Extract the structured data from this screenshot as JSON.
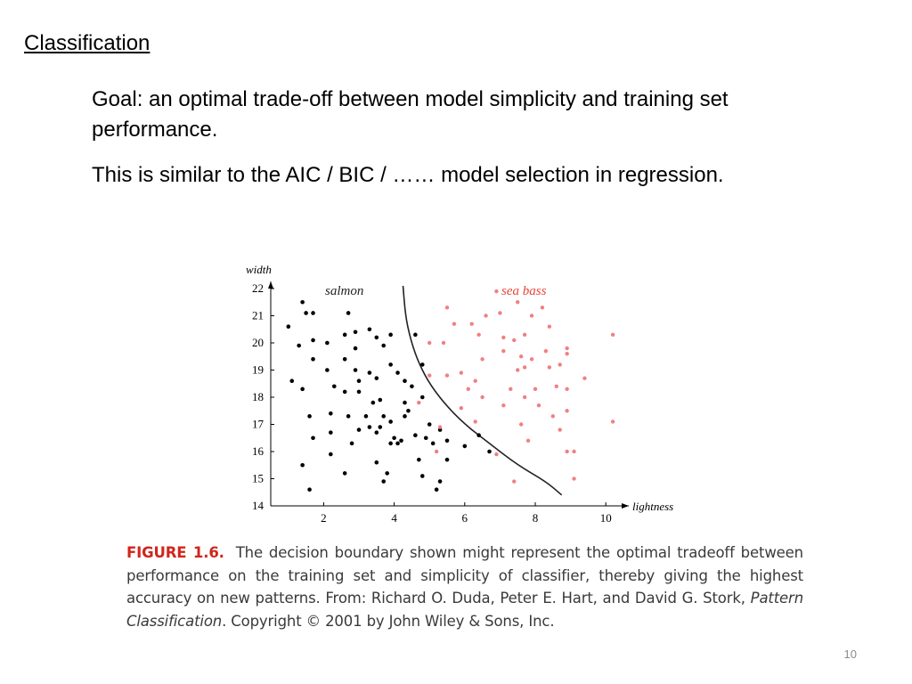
{
  "slide": {
    "title": "Classification",
    "paragraphs": [
      "Goal: an optimal trade-off between model simplicity and training set performance.",
      "This is similar to the AIC / BIC / …… model selection in regression."
    ],
    "page_number": "10"
  },
  "caption": {
    "label": "FIGURE 1.6.",
    "text_1": "The decision boundary shown might represent the optimal tradeoff between performance on the training set and simplicity of classifier, thereby giving the highest accuracy on new patterns. From: Richard O. Duda, Peter E. Hart, and David G. Stork,",
    "book": "Pattern Classification",
    "text_2": ". Copyright © 2001 by John Wiley & Sons, Inc."
  },
  "colors": {
    "salmon": "#000000",
    "sea_bass": "#f08080",
    "sea_bass_label": "#e8443a",
    "boundary": "#222222",
    "caption_label": "#d0261d"
  },
  "chart_data": {
    "type": "scatter",
    "xlabel": "lightness",
    "ylabel": "width",
    "xlim": [
      0.5,
      10.5
    ],
    "ylim": [
      14,
      22
    ],
    "x_ticks": [
      2,
      4,
      6,
      8,
      10
    ],
    "y_ticks": [
      14,
      15,
      16,
      17,
      18,
      19,
      20,
      21,
      22
    ],
    "grid": false,
    "series": [
      {
        "name": "salmon",
        "points": [
          [
            1.4,
            21.5
          ],
          [
            1.5,
            21.1
          ],
          [
            1.7,
            21.1
          ],
          [
            2.7,
            21.1
          ],
          [
            1.0,
            20.6
          ],
          [
            1.3,
            19.9
          ],
          [
            1.7,
            20.1
          ],
          [
            2.1,
            20.0
          ],
          [
            2.6,
            20.3
          ],
          [
            2.9,
            20.4
          ],
          [
            3.3,
            20.5
          ],
          [
            3.5,
            20.2
          ],
          [
            3.9,
            20.3
          ],
          [
            3.7,
            19.9
          ],
          [
            2.9,
            19.8
          ],
          [
            2.6,
            19.4
          ],
          [
            1.7,
            19.4
          ],
          [
            2.1,
            19.0
          ],
          [
            2.9,
            19.0
          ],
          [
            3.3,
            18.9
          ],
          [
            3.5,
            18.7
          ],
          [
            3.0,
            18.6
          ],
          [
            3.9,
            19.2
          ],
          [
            4.1,
            18.9
          ],
          [
            4.3,
            18.6
          ],
          [
            4.5,
            18.4
          ],
          [
            4.6,
            20.3
          ],
          [
            4.8,
            19.2
          ],
          [
            4.8,
            18.0
          ],
          [
            1.1,
            18.6
          ],
          [
            1.4,
            18.3
          ],
          [
            2.3,
            18.4
          ],
          [
            2.6,
            18.2
          ],
          [
            3.0,
            18.2
          ],
          [
            3.6,
            17.9
          ],
          [
            4.3,
            17.8
          ],
          [
            4.4,
            17.5
          ],
          [
            4.3,
            17.3
          ],
          [
            3.4,
            17.8
          ],
          [
            3.2,
            17.3
          ],
          [
            2.2,
            17.4
          ],
          [
            2.7,
            17.3
          ],
          [
            3.7,
            17.3
          ],
          [
            3.9,
            17.1
          ],
          [
            3.3,
            16.9
          ],
          [
            3.6,
            16.9
          ],
          [
            3.0,
            16.8
          ],
          [
            3.5,
            16.7
          ],
          [
            1.6,
            17.3
          ],
          [
            2.2,
            16.7
          ],
          [
            1.7,
            16.5
          ],
          [
            2.8,
            16.3
          ],
          [
            3.9,
            16.3
          ],
          [
            4.0,
            16.5
          ],
          [
            4.2,
            16.4
          ],
          [
            4.6,
            16.6
          ],
          [
            4.9,
            16.5
          ],
          [
            5.1,
            16.3
          ],
          [
            5.0,
            17.0
          ],
          [
            5.3,
            16.8
          ],
          [
            5.5,
            16.4
          ],
          [
            4.1,
            16.3
          ],
          [
            5.5,
            15.7
          ],
          [
            2.2,
            15.9
          ],
          [
            1.4,
            15.5
          ],
          [
            2.6,
            15.2
          ],
          [
            3.5,
            15.6
          ],
          [
            3.8,
            15.2
          ],
          [
            3.7,
            14.9
          ],
          [
            4.7,
            15.7
          ],
          [
            4.8,
            15.1
          ],
          [
            5.3,
            14.9
          ],
          [
            1.6,
            14.6
          ],
          [
            5.2,
            14.6
          ],
          [
            6.0,
            16.2
          ],
          [
            6.4,
            16.6
          ],
          [
            6.7,
            16.0
          ]
        ]
      },
      {
        "name": "sea bass",
        "points": [
          [
            6.9,
            21.9
          ],
          [
            7.5,
            21.5
          ],
          [
            5.5,
            21.3
          ],
          [
            6.6,
            21.0
          ],
          [
            7.0,
            21.1
          ],
          [
            8.2,
            21.3
          ],
          [
            7.9,
            21.0
          ],
          [
            5.7,
            20.7
          ],
          [
            6.2,
            20.7
          ],
          [
            8.4,
            20.6
          ],
          [
            10.2,
            20.3
          ],
          [
            6.4,
            20.3
          ],
          [
            7.1,
            20.2
          ],
          [
            7.7,
            20.3
          ],
          [
            5.0,
            20.0
          ],
          [
            5.4,
            20.0
          ],
          [
            7.4,
            20.1
          ],
          [
            8.9,
            19.8
          ],
          [
            6.5,
            19.4
          ],
          [
            7.1,
            19.7
          ],
          [
            7.6,
            19.5
          ],
          [
            8.3,
            19.7
          ],
          [
            8.9,
            19.6
          ],
          [
            7.9,
            19.4
          ],
          [
            8.4,
            19.1
          ],
          [
            8.7,
            19.2
          ],
          [
            7.5,
            19.0
          ],
          [
            7.7,
            19.1
          ],
          [
            5.9,
            18.9
          ],
          [
            5.5,
            18.8
          ],
          [
            6.3,
            18.6
          ],
          [
            5.0,
            18.8
          ],
          [
            7.3,
            18.3
          ],
          [
            8.0,
            18.3
          ],
          [
            8.9,
            18.3
          ],
          [
            9.4,
            18.7
          ],
          [
            7.7,
            18.0
          ],
          [
            8.6,
            18.4
          ],
          [
            6.1,
            18.3
          ],
          [
            6.5,
            18.0
          ],
          [
            7.1,
            17.7
          ],
          [
            8.1,
            17.7
          ],
          [
            5.9,
            17.6
          ],
          [
            8.9,
            17.5
          ],
          [
            8.5,
            17.3
          ],
          [
            6.3,
            17.1
          ],
          [
            7.6,
            17.0
          ],
          [
            10.2,
            17.1
          ],
          [
            8.7,
            16.8
          ],
          [
            7.8,
            16.4
          ],
          [
            9.1,
            16.0
          ],
          [
            8.9,
            16.0
          ],
          [
            6.9,
            15.9
          ],
          [
            7.4,
            14.9
          ],
          [
            9.1,
            15.0
          ],
          [
            4.7,
            17.8
          ],
          [
            5.3,
            16.9
          ],
          [
            5.2,
            16.0
          ]
        ]
      }
    ],
    "labels": [
      "salmon",
      "sea bass"
    ],
    "boundary": [
      [
        4.25,
        22.1
      ],
      [
        4.32,
        21.0
      ],
      [
        4.45,
        20.2
      ],
      [
        4.65,
        19.4
      ],
      [
        4.95,
        18.6
      ],
      [
        5.4,
        17.8
      ],
      [
        6.0,
        17.0
      ],
      [
        6.7,
        16.3
      ],
      [
        7.5,
        15.5
      ],
      [
        8.3,
        14.9
      ],
      [
        8.75,
        14.4
      ]
    ]
  }
}
